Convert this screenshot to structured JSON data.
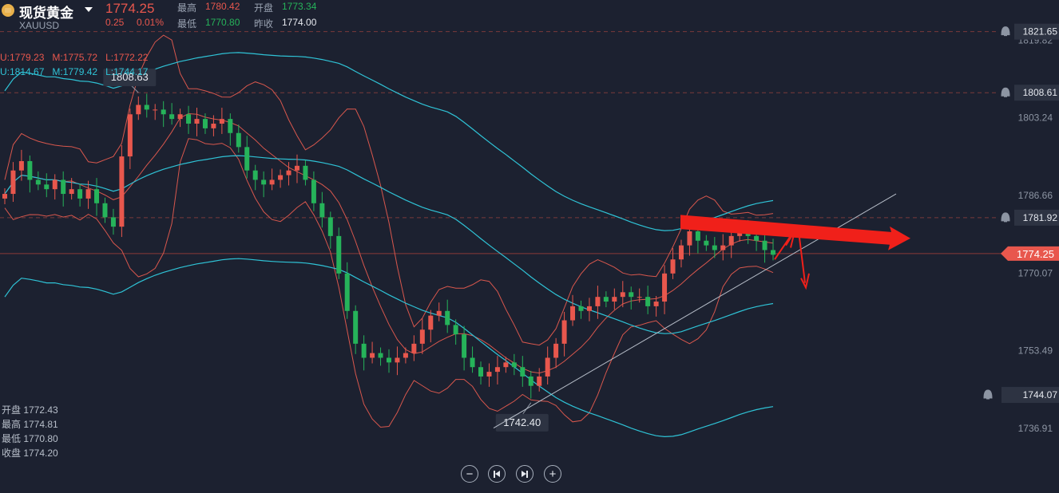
{
  "header": {
    "instrument_name": "现货黄金",
    "symbol": "XAUUSD",
    "last_price": "1774.25",
    "change": "0.25",
    "change_pct": "0.01%",
    "high_label": "最高",
    "high_value": "1780.42",
    "low_label": "最低",
    "low_value": "1770.80",
    "open_label": "开盘",
    "open_value": "1773.34",
    "prev_close_label": "昨收",
    "prev_close_value": "1774.00"
  },
  "indicators": {
    "boll_red": "U:1779.23   M:1775.72   L:1772.22",
    "boll_cyan": "U:1814.67   M:1779.42   L:1744.17"
  },
  "ohlc_panel": {
    "open": "开盘 1772.43",
    "high": "最高 1774.81",
    "low": "最低 1770.80",
    "close": "收盘 1774.20"
  },
  "colors": {
    "background": "#1c2130",
    "up": "#e8574d",
    "down": "#26b35a",
    "cyan_band": "#2fc3d6",
    "red_band": "#d8574d",
    "arrow": "#f0201a"
  },
  "chart_data": {
    "type": "candlestick",
    "ylim": [
      1733,
      1825
    ],
    "y_ticks": [
      1819.82,
      1803.24,
      1786.66,
      1770.07,
      1753.49,
      1736.91
    ],
    "price_labels": [
      {
        "value": 1821.65,
        "text": "1821.65",
        "alert": true
      },
      {
        "value": 1808.61,
        "text": "1808.61",
        "alert": true
      },
      {
        "value": 1781.92,
        "text": "1781.92",
        "alert": true
      },
      {
        "value": 1774.25,
        "text": "1774.25",
        "current": true
      },
      {
        "value": 1744.07,
        "text": "1744.07",
        "alert": true
      }
    ],
    "annotations": [
      {
        "text": "1808.63",
        "kind": "high"
      },
      {
        "text": "1742.40",
        "kind": "low"
      }
    ],
    "candles_close": [
      1787,
      1792,
      1794,
      1790,
      1789,
      1788,
      1790,
      1787,
      1788,
      1786,
      1788,
      1785,
      1782,
      1780,
      1795,
      1804,
      1806,
      1805,
      1805,
      1804,
      1803,
      1804,
      1802,
      1803,
      1801,
      1802,
      1803,
      1800,
      1797,
      1792,
      1790,
      1789,
      1790,
      1791,
      1792,
      1793,
      1790,
      1785,
      1782,
      1778,
      1770,
      1762,
      1755,
      1752,
      1753,
      1752,
      1751,
      1752,
      1753,
      1755,
      1758,
      1761,
      1762,
      1759,
      1757,
      1752,
      1750,
      1748,
      1749,
      1750,
      1751,
      1750,
      1748,
      1746,
      1748,
      1752,
      1755,
      1760,
      1763,
      1762,
      1763,
      1765,
      1764,
      1765,
      1766,
      1765,
      1765,
      1763,
      1764,
      1770,
      1773,
      1776,
      1779,
      1777,
      1776,
      1775,
      1776,
      1778,
      1779,
      1778,
      1777,
      1775,
      1774
    ]
  }
}
